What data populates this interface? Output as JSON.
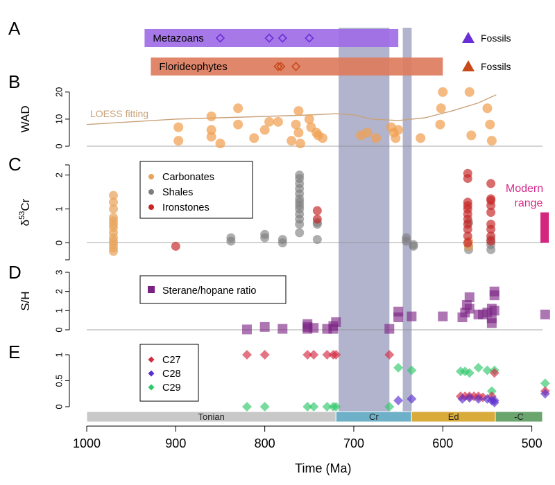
{
  "chart_data": {
    "type": "scatter",
    "xlabel": "Time (Ma)",
    "x_ticks": [
      1000,
      900,
      800,
      700,
      600,
      500
    ],
    "xlim": [
      1000,
      488
    ],
    "shaded_intervals": [
      [
        717,
        660
      ],
      [
        645,
        635
      ]
    ],
    "periods": [
      {
        "label": "Tonian",
        "start": 1000,
        "end": 720,
        "color": "#c8c8c8"
      },
      {
        "label": "Cr",
        "start": 720,
        "end": 635,
        "color": "#6fb0c9"
      },
      {
        "label": "Ed",
        "start": 635,
        "end": 541,
        "color": "#d9ab3a"
      },
      {
        "label": "-C",
        "start": 541,
        "end": 488,
        "color": "#6aa56d"
      }
    ],
    "panels": {
      "A": {
        "letter": "A",
        "bars": [
          {
            "label": "Metazoans",
            "start": 935,
            "end": 650,
            "color": "#a06ce6",
            "fossils": [
              850,
              795,
              780,
              750
            ],
            "fossil_color": "#6a2ed6"
          },
          {
            "label": "Florideophytes",
            "start": 928,
            "end": 600,
            "color": "#dd7c5e",
            "fossils": [
              785,
              782,
              765
            ],
            "fossil_color": "#c84a1a"
          }
        ],
        "legend": [
          {
            "label": "Fossils",
            "color": "#6a2ed6"
          },
          {
            "label": "Fossils",
            "color": "#c84a1a"
          }
        ]
      },
      "B": {
        "letter": "B",
        "ylabel": "WAD",
        "yticks": [
          0,
          10,
          20
        ],
        "ylim": [
          0,
          22
        ],
        "loess_label": "LOESS fitting",
        "loess": [
          [
            1000,
            8
          ],
          [
            950,
            9
          ],
          [
            900,
            10
          ],
          [
            850,
            10.5
          ],
          [
            800,
            11
          ],
          [
            750,
            11.5
          ],
          [
            720,
            12
          ],
          [
            700,
            11.5
          ],
          [
            680,
            10
          ],
          [
            650,
            9.5
          ],
          [
            620,
            10.5
          ],
          [
            590,
            13
          ],
          [
            560,
            16
          ],
          [
            540,
            19
          ]
        ],
        "points": [
          [
            897,
            7
          ],
          [
            897,
            2
          ],
          [
            860,
            11
          ],
          [
            860,
            6
          ],
          [
            860,
            3.5
          ],
          [
            850,
            1
          ],
          [
            830,
            14
          ],
          [
            830,
            8
          ],
          [
            812,
            3
          ],
          [
            800,
            6
          ],
          [
            795,
            9
          ],
          [
            785,
            9
          ],
          [
            770,
            2
          ],
          [
            765,
            8
          ],
          [
            762,
            13
          ],
          [
            762,
            5
          ],
          [
            760,
            1
          ],
          [
            750,
            10
          ],
          [
            748,
            7
          ],
          [
            742,
            5
          ],
          [
            740,
            4
          ],
          [
            735,
            3
          ],
          [
            692,
            4
          ],
          [
            685,
            5
          ],
          [
            675,
            3
          ],
          [
            658,
            7
          ],
          [
            655,
            5
          ],
          [
            653,
            3
          ],
          [
            650,
            6
          ],
          [
            625,
            3
          ],
          [
            603,
            8
          ],
          [
            602,
            14
          ],
          [
            600,
            20
          ],
          [
            570,
            20
          ],
          [
            568,
            4
          ],
          [
            550,
            14
          ],
          [
            547,
            8
          ],
          [
            545,
            2
          ]
        ]
      },
      "C": {
        "letter": "C",
        "ylabel": "δ",
        "ylabel_sup": "53",
        "ylabel_tail": "Cr",
        "yticks": [
          0,
          1,
          2
        ],
        "ylim": [
          -0.5,
          2.3
        ],
        "legend": [
          {
            "label": "Carbonates",
            "color": "#e9a45c"
          },
          {
            "label": "Shales",
            "color": "#7d7d7d"
          },
          {
            "label": "Ironstones",
            "color": "#c62828"
          }
        ],
        "modern_label_1": "Modern",
        "modern_label_2": "range",
        "modern_range": [
          0,
          0.9
        ],
        "carbonates": [
          [
            970,
            -0.25
          ],
          [
            970,
            -0.15
          ],
          [
            970,
            -0.05
          ],
          [
            970,
            0.05
          ],
          [
            970,
            0.15
          ],
          [
            970,
            0.3
          ],
          [
            970,
            0.45
          ],
          [
            970,
            0.55
          ],
          [
            970,
            0.65
          ],
          [
            970,
            0.75
          ],
          [
            970,
            1.0
          ],
          [
            970,
            1.2
          ],
          [
            970,
            1.4
          ],
          [
            571,
            -0.1
          ],
          [
            571,
            0.05
          ]
        ],
        "shales": [
          [
            838,
            0.05
          ],
          [
            838,
            0.15
          ],
          [
            800,
            0.15
          ],
          [
            800,
            0.25
          ],
          [
            780,
            0.0
          ],
          [
            780,
            0.1
          ],
          [
            761,
            0.3
          ],
          [
            761,
            0.55
          ],
          [
            761,
            0.7
          ],
          [
            761,
            0.85
          ],
          [
            761,
            1.0
          ],
          [
            761,
            1.1
          ],
          [
            761,
            1.2
          ],
          [
            761,
            1.3
          ],
          [
            761,
            1.45
          ],
          [
            761,
            1.6
          ],
          [
            761,
            1.75
          ],
          [
            761,
            1.9
          ],
          [
            761,
            2.0
          ],
          [
            741,
            0.1
          ],
          [
            741,
            0.55
          ],
          [
            741,
            0.6
          ],
          [
            641,
            0.05
          ],
          [
            641,
            0.15
          ],
          [
            633,
            -0.1
          ],
          [
            633,
            -0.05
          ],
          [
            571,
            -0.2
          ],
          [
            571,
            -0.1
          ],
          [
            571,
            0.6
          ],
          [
            546,
            -0.2
          ],
          [
            546,
            -0.05
          ],
          [
            546,
            0.1
          ]
        ],
        "ironstones": [
          [
            900,
            -0.1
          ],
          [
            741,
            0.95
          ],
          [
            741,
            0.7
          ],
          [
            572,
            0.0
          ],
          [
            572,
            0.2
          ],
          [
            572,
            0.4
          ],
          [
            572,
            0.55
          ],
          [
            572,
            0.7
          ],
          [
            572,
            0.85
          ],
          [
            572,
            1.0
          ],
          [
            572,
            1.1
          ],
          [
            572,
            1.2
          ],
          [
            572,
            1.9
          ],
          [
            572,
            2.05
          ],
          [
            546,
            0.05
          ],
          [
            546,
            0.2
          ],
          [
            546,
            0.4
          ],
          [
            546,
            0.55
          ],
          [
            546,
            0.9
          ],
          [
            546,
            1.1
          ],
          [
            546,
            1.25
          ],
          [
            546,
            1.3
          ],
          [
            546,
            1.75
          ]
        ]
      },
      "D": {
        "letter": "D",
        "ylabel": "S/H",
        "yticks": [
          0,
          1,
          2,
          3
        ],
        "ylim": [
          0,
          3
        ],
        "legend_label": "Sterane/hopane ratio",
        "points": [
          [
            820,
            0.02
          ],
          [
            800,
            0.15
          ],
          [
            780,
            0.05
          ],
          [
            752,
            0.05
          ],
          [
            752,
            0.15
          ],
          [
            752,
            0.3
          ],
          [
            745,
            0.1
          ],
          [
            730,
            0.05
          ],
          [
            723,
            0.05
          ],
          [
            723,
            0.2
          ],
          [
            720,
            0.4
          ],
          [
            660,
            0.05
          ],
          [
            650,
            0.95
          ],
          [
            650,
            0.65
          ],
          [
            635,
            0.7
          ],
          [
            600,
            0.7
          ],
          [
            578,
            0.65
          ],
          [
            575,
            0.9
          ],
          [
            573,
            1.3
          ],
          [
            570,
            1.1
          ],
          [
            570,
            1.7
          ],
          [
            560,
            0.8
          ],
          [
            555,
            0.8
          ],
          [
            550,
            0.9
          ],
          [
            545,
            1.1
          ],
          [
            545,
            0.6
          ],
          [
            545,
            0.35
          ],
          [
            542,
            2.0
          ],
          [
            542,
            1.8
          ],
          [
            542,
            1.0
          ],
          [
            485,
            0.8
          ]
        ]
      },
      "E": {
        "letter": "E",
        "yticks": [
          "0",
          "0.5",
          "1"
        ],
        "ytick_values": [
          0,
          0.5,
          1
        ],
        "ylim": [
          -0.08,
          1.12
        ],
        "legend": [
          {
            "label": "C27",
            "color": "#d42a40"
          },
          {
            "label": "C28",
            "color": "#5a2fd0"
          },
          {
            "label": "C29",
            "color": "#2ec86a"
          }
        ],
        "c27": [
          [
            820,
            1
          ],
          [
            800,
            1
          ],
          [
            752,
            1
          ],
          [
            745,
            1
          ],
          [
            730,
            1
          ],
          [
            723,
            1
          ],
          [
            720,
            1
          ],
          [
            660,
            1
          ],
          [
            580,
            0.2
          ],
          [
            575,
            0.2
          ],
          [
            570,
            0.2
          ],
          [
            565,
            0.2
          ],
          [
            560,
            0.2
          ],
          [
            555,
            0.18
          ],
          [
            545,
            0.2
          ],
          [
            542,
            0.65
          ],
          [
            485,
            0.3
          ]
        ],
        "c28": [
          [
            650,
            0.12
          ],
          [
            635,
            0.15
          ],
          [
            578,
            0.15
          ],
          [
            570,
            0.17
          ],
          [
            560,
            0.15
          ],
          [
            550,
            0.15
          ],
          [
            545,
            0.12
          ],
          [
            542,
            0.08
          ],
          [
            542,
            0.12
          ],
          [
            485,
            0.25
          ]
        ],
        "c29": [
          [
            820,
            0
          ],
          [
            800,
            0
          ],
          [
            752,
            0
          ],
          [
            745,
            0
          ],
          [
            730,
            0
          ],
          [
            723,
            0
          ],
          [
            720,
            0
          ],
          [
            660,
            0
          ],
          [
            650,
            0.75
          ],
          [
            635,
            0.7
          ],
          [
            580,
            0.68
          ],
          [
            575,
            0.68
          ],
          [
            570,
            0.65
          ],
          [
            560,
            0.75
          ],
          [
            550,
            0.7
          ],
          [
            545,
            0.3
          ],
          [
            542,
            0.7
          ],
          [
            485,
            0.45
          ]
        ]
      }
    }
  }
}
